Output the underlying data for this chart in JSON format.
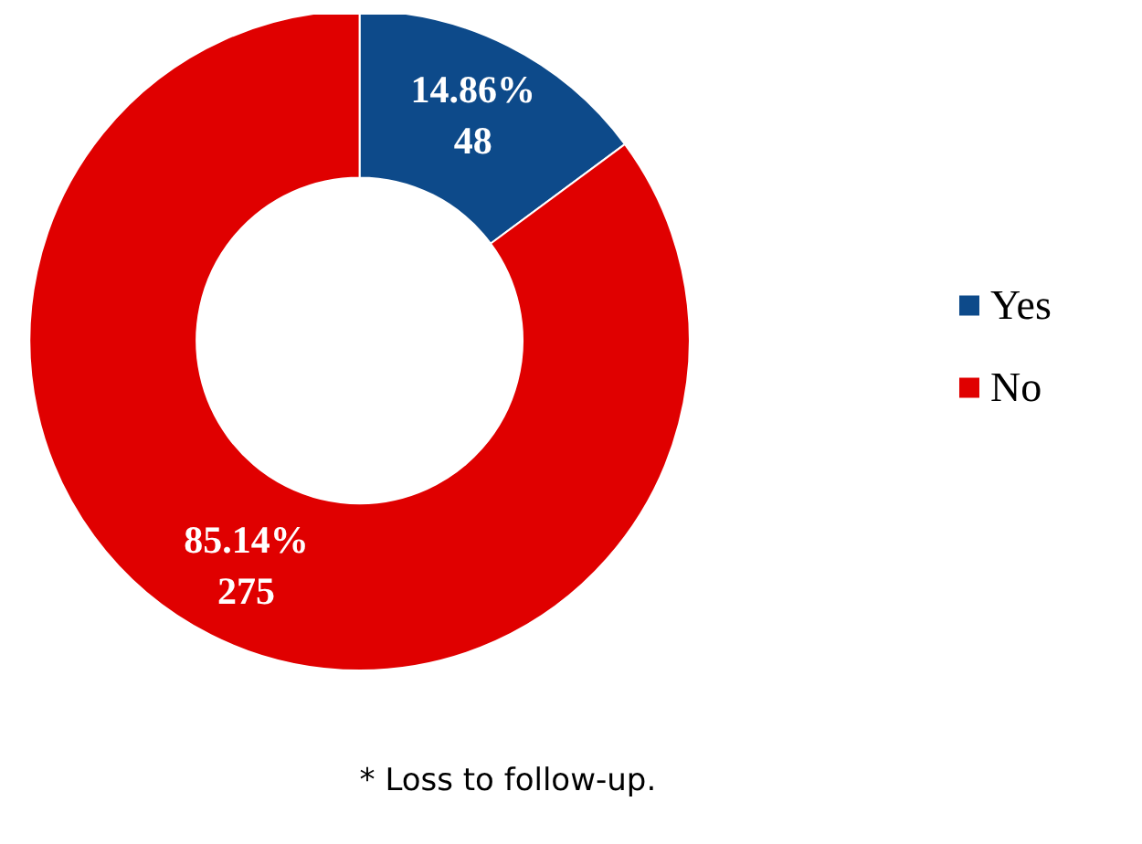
{
  "chart_data": {
    "type": "donut",
    "categories": [
      "Yes",
      "No"
    ],
    "values": [
      48,
      275
    ],
    "colors": [
      "#0d4a8a",
      "#e00000"
    ],
    "value_labels": [
      "14.86%\n48",
      "85.14%\n275"
    ],
    "legend": "right",
    "annotations": [
      "* Loss to follow-up."
    ]
  }
}
